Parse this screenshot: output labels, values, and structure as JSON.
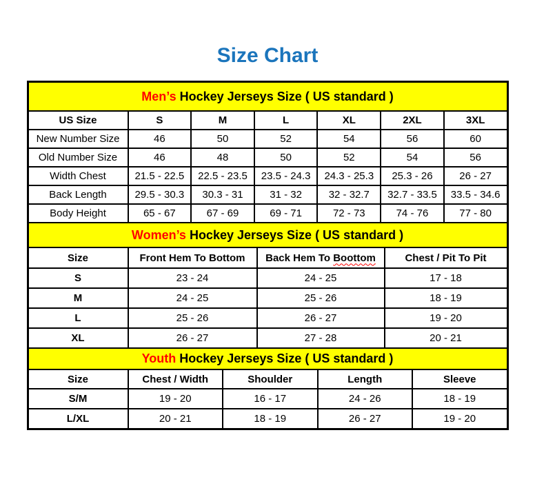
{
  "page": {
    "title": "Size Chart"
  },
  "colors": {
    "title_blue": "#1B75BC",
    "section_header_bg": "#FFFF00",
    "section_highlight_red": "#FF0000",
    "border": "#000000",
    "background": "#FFFFFF"
  },
  "men": {
    "title_highlight": "Men’s",
    "title_rest": " Hockey Jerseys Size ( US standard )",
    "columns": [
      "US Size",
      "S",
      "M",
      "L",
      "XL",
      "2XL",
      "3XL"
    ],
    "rows": [
      {
        "label": "New Number Size",
        "values": [
          "46",
          "50",
          "52",
          "54",
          "56",
          "60"
        ]
      },
      {
        "label": "Old Number Size",
        "values": [
          "46",
          "48",
          "50",
          "52",
          "54",
          "56"
        ]
      },
      {
        "label": "Width Chest",
        "values": [
          "21.5 - 22.5",
          "22.5 - 23.5",
          "23.5 - 24.3",
          "24.3 - 25.3",
          "25.3 - 26",
          "26 - 27"
        ]
      },
      {
        "label": "Back Length",
        "values": [
          "29.5 - 30.3",
          "30.3 - 31",
          "31 - 32",
          "32 - 32.7",
          "32.7 - 33.5",
          "33.5 - 34.6"
        ]
      },
      {
        "label": "Body Height",
        "values": [
          "65 - 67",
          "67 - 69",
          "69 - 71",
          "72 - 73",
          "74 - 76",
          "77 - 80"
        ]
      }
    ]
  },
  "women": {
    "title_highlight": "Women’s",
    "title_rest": " Hockey Jerseys Size ( US standard )",
    "columns": {
      "size": "Size",
      "front_hem": "Front Hem To Bottom",
      "back_hem_prefix": "Back Hem To ",
      "back_hem_typo": "Boottom",
      "chest": "Chest / Pit To Pit"
    },
    "rows": [
      {
        "label": "S",
        "values": [
          "23 - 24",
          "24 - 25",
          "17 - 18"
        ]
      },
      {
        "label": "M",
        "values": [
          "24 - 25",
          "25 - 26",
          "18 - 19"
        ]
      },
      {
        "label": "L",
        "values": [
          "25 - 26",
          "26 - 27",
          "19 - 20"
        ]
      },
      {
        "label": "XL",
        "values": [
          "26 - 27",
          "27 - 28",
          "20 - 21"
        ]
      }
    ]
  },
  "youth": {
    "title_highlight": "Youth",
    "title_rest": " Hockey Jerseys Size ( US standard )",
    "columns": [
      "Size",
      "Chest / Width",
      "Shoulder",
      "Length",
      "Sleeve"
    ],
    "rows": [
      {
        "label": "S/M",
        "values": [
          "19 - 20",
          "16 - 17",
          "24 - 26",
          "18 - 19"
        ]
      },
      {
        "label": "L/XL",
        "values": [
          "20 - 21",
          "18 - 19",
          "26 - 27",
          "19 - 20"
        ]
      }
    ]
  }
}
